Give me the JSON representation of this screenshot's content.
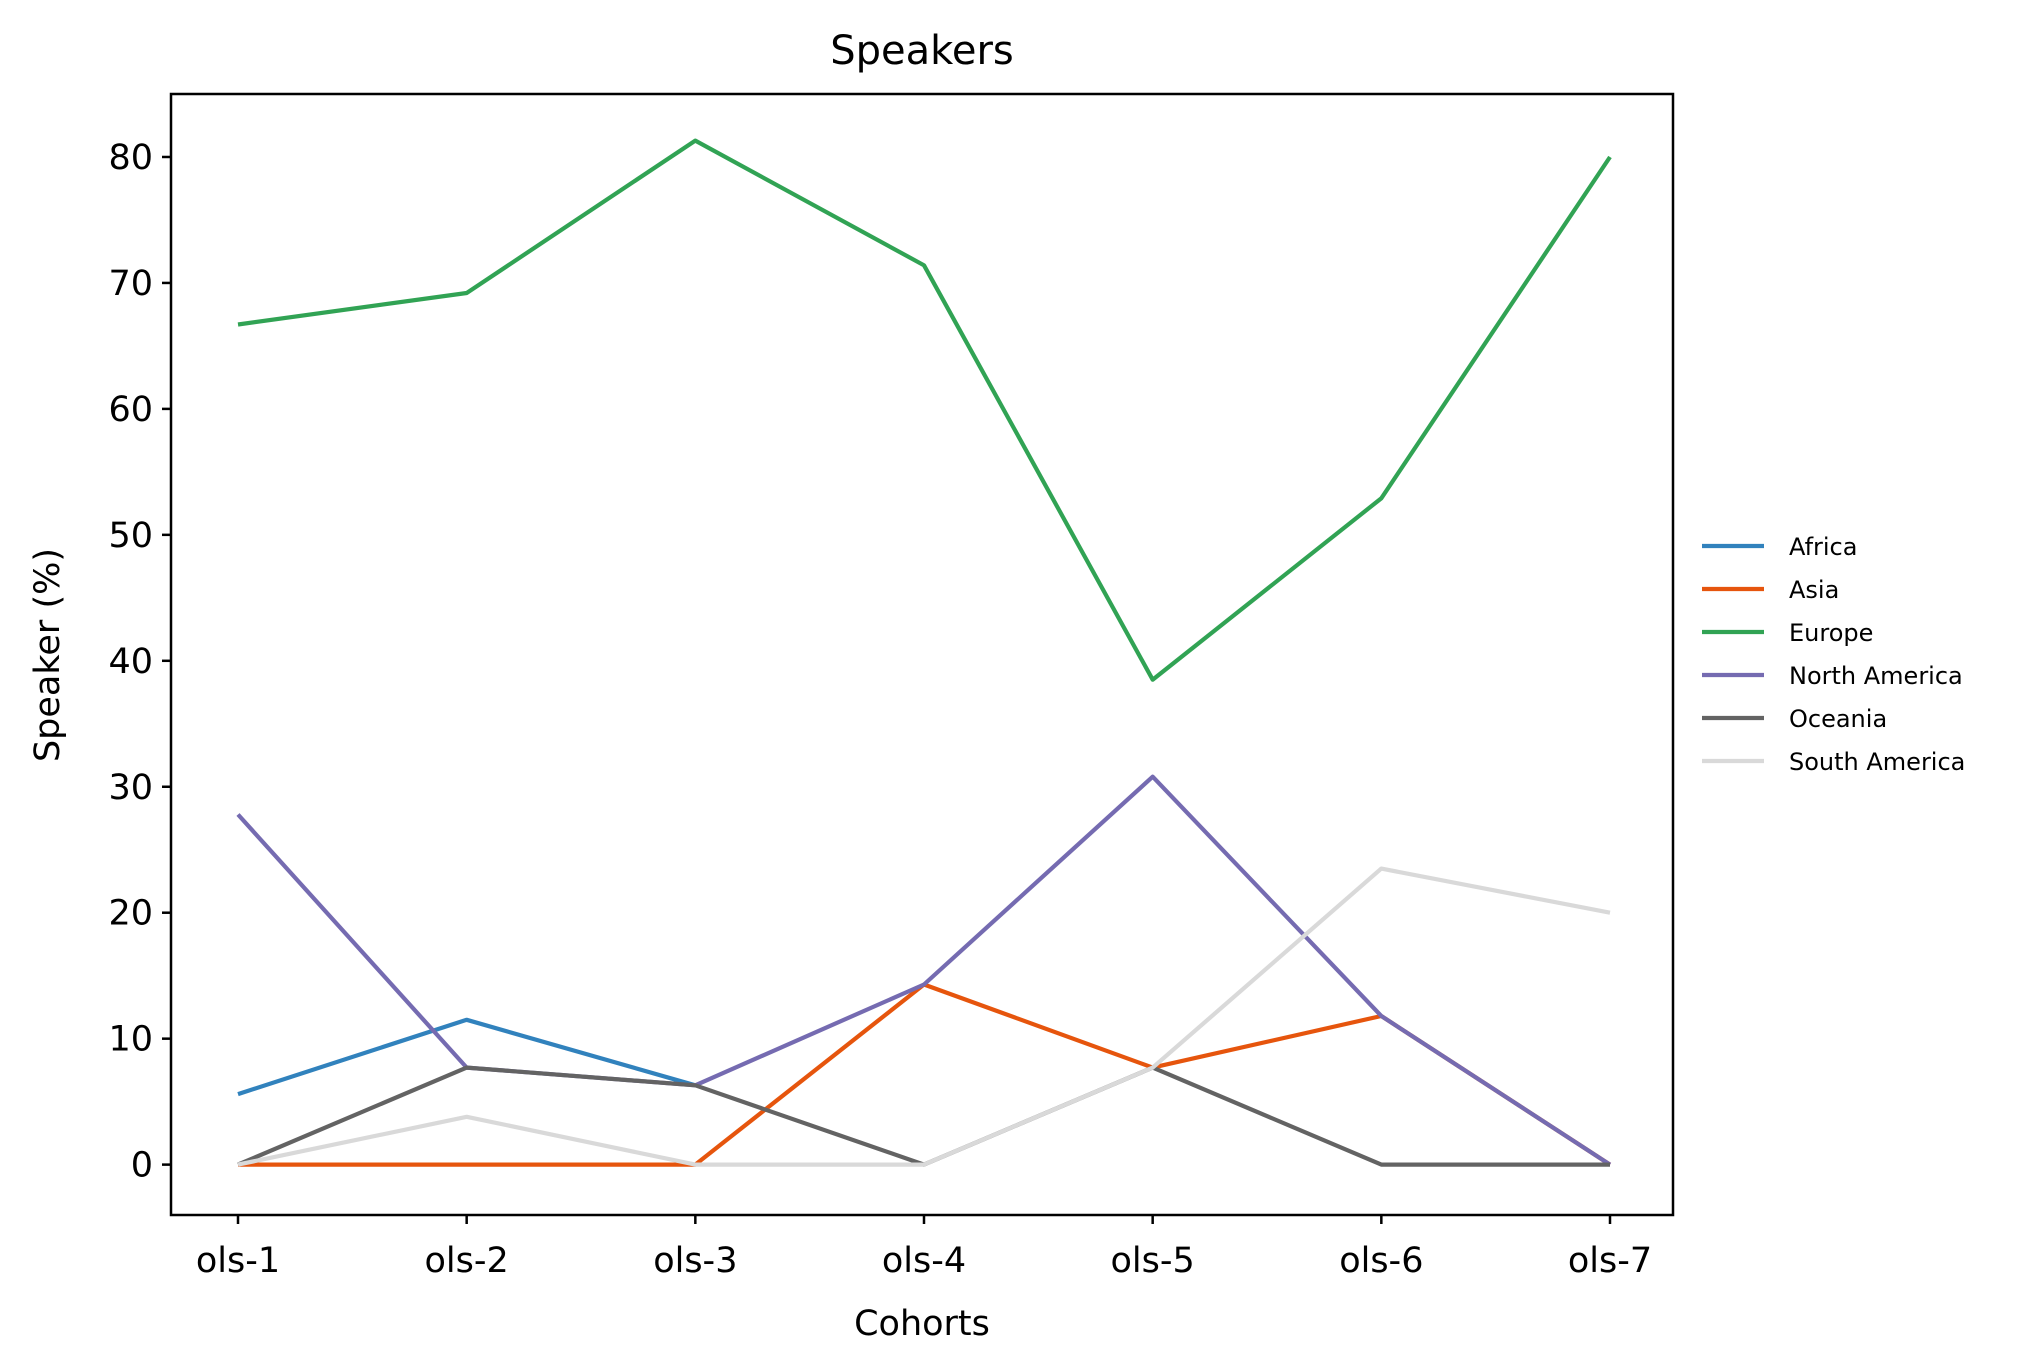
{
  "chart_data": {
    "type": "line",
    "title": "Speakers",
    "xlabel": "Cohorts",
    "ylabel": "Speaker (%)",
    "categories": [
      "ols-1",
      "ols-2",
      "ols-3",
      "ols-4",
      "ols-5",
      "ols-6",
      "ols-7"
    ],
    "ylim": [
      -4,
      85
    ],
    "yticks": [
      0,
      10,
      20,
      30,
      40,
      50,
      60,
      70,
      80
    ],
    "grid": false,
    "legend_position": "center-right outside",
    "series": [
      {
        "name": "Africa",
        "color": "#3182bd",
        "values": [
          5.6,
          11.5,
          6.3,
          null,
          null,
          null,
          null
        ]
      },
      {
        "name": "Asia",
        "color": "#e6550d",
        "values": [
          0,
          0,
          0,
          14.3,
          7.7,
          11.8,
          0
        ]
      },
      {
        "name": "Europe",
        "color": "#31a354",
        "values": [
          66.7,
          69.2,
          81.3,
          71.4,
          38.5,
          52.9,
          80.0
        ]
      },
      {
        "name": "North America",
        "color": "#756bb1",
        "values": [
          27.8,
          7.7,
          6.3,
          14.3,
          30.8,
          11.8,
          0
        ]
      },
      {
        "name": "Oceania",
        "color": "#636363",
        "values": [
          0,
          7.7,
          6.3,
          0,
          7.7,
          0,
          0
        ]
      },
      {
        "name": "South America",
        "color": "#d9d9d9",
        "values": [
          0,
          3.8,
          0,
          0,
          7.7,
          23.5,
          20.0
        ]
      }
    ]
  }
}
